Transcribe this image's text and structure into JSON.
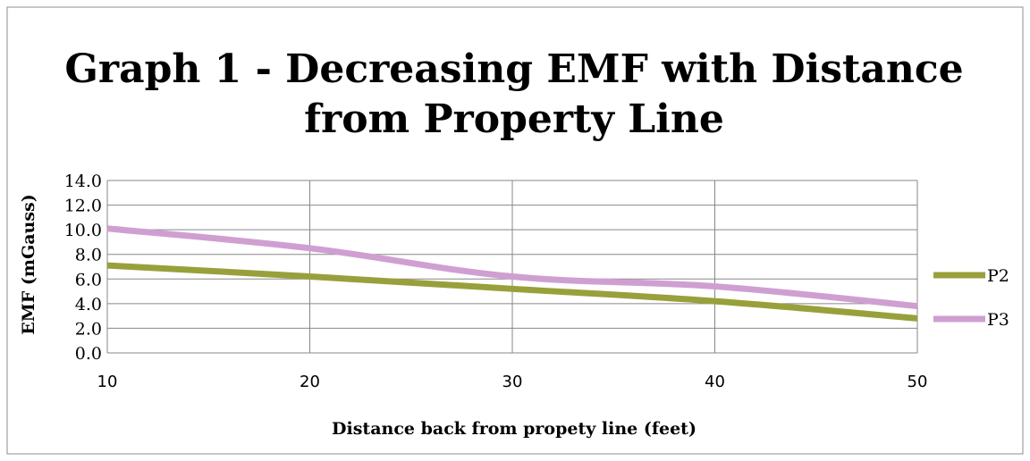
{
  "chart_data": {
    "type": "line",
    "title_lines": [
      "Graph 1 - Decreasing EMF with Distance",
      "from Property Line"
    ],
    "xlabel": "Distance back from propety line (feet)",
    "ylabel": "EMF (mGauss)",
    "x": [
      10,
      20,
      30,
      40,
      50
    ],
    "x_tick_labels": [
      "10",
      "20",
      "30",
      "40",
      "50"
    ],
    "xlim": [
      10,
      50
    ],
    "ylim": [
      0,
      14
    ],
    "y_tick_labels": [
      "0.0",
      "2.0",
      "4.0",
      "6.0",
      "8.0",
      "10.0",
      "12.0",
      "14.0"
    ],
    "grid": true,
    "legend_position": "right",
    "series": [
      {
        "name": "P2",
        "color": "#98a03b",
        "values": [
          7.1,
          6.2,
          5.2,
          4.2,
          2.8
        ]
      },
      {
        "name": "P3",
        "color": "#d09fd2",
        "values": [
          10.1,
          8.5,
          6.2,
          5.4,
          3.8
        ]
      }
    ]
  }
}
